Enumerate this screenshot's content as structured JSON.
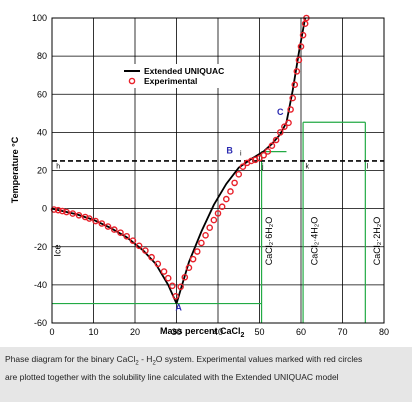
{
  "chart_data": {
    "type": "scatter",
    "xlabel": "Mass percent CaCl",
    "xlabel_sub": "2",
    "ylabel": "Temperature °C",
    "xlim": [
      0,
      80
    ],
    "ylim": [
      -60,
      100
    ],
    "xticks": [
      0,
      10,
      20,
      30,
      40,
      50,
      60,
      70,
      80
    ],
    "yticks": [
      -60,
      -40,
      -20,
      0,
      20,
      40,
      60,
      80,
      100
    ],
    "grid": true,
    "legend_position": "upper-left",
    "legend": [
      {
        "label": "Extended UNIQUAC",
        "style": "line",
        "color": "#000000"
      },
      {
        "label": "Experimental",
        "style": "marker",
        "color": "#e8202a"
      }
    ],
    "reference_line": {
      "y": 25,
      "style": "dashed",
      "color": "#000000"
    },
    "phase_lines_color": "#22aa44",
    "phase_lines": [
      {
        "x1": 0,
        "y1": -49.8,
        "x2": 50.5,
        "y2": -49.8
      },
      {
        "x1": 50.5,
        "y1": -60,
        "x2": 50.5,
        "y2": 29.9
      },
      {
        "x1": 50.5,
        "y1": 29.9,
        "x2": 56.5,
        "y2": 29.9
      },
      {
        "x1": 60.5,
        "y1": -60,
        "x2": 60.5,
        "y2": 45.3
      },
      {
        "x1": 60.5,
        "y1": 45.3,
        "x2": 75.5,
        "y2": 45.3
      },
      {
        "x1": 75.5,
        "y1": -60,
        "x2": 75.5,
        "y2": 45.3
      }
    ],
    "series": [
      {
        "name": "Extended UNIQUAC",
        "type": "line",
        "color": "#000000",
        "segments": [
          {
            "x": [
              0,
              3,
              6,
              10,
              14,
              18,
              22,
              25,
              28,
              30
            ],
            "y": [
              0,
              -1.5,
              -3,
              -5.9,
              -10,
              -15,
              -22,
              -29,
              -40,
              -49.8
            ]
          },
          {
            "x": [
              30,
              33,
              36,
              39,
              42,
              45,
              48,
              51
            ],
            "y": [
              -49.8,
              -28,
              -12,
              2,
              13,
              21.5,
              26,
              30
            ]
          },
          {
            "x": [
              51,
              53,
              55,
              56.5
            ],
            "y": [
              30,
              34,
              39,
              45.3
            ]
          },
          {
            "x": [
              56.5,
              58,
              59.5,
              61
            ],
            "y": [
              45.3,
              62,
              82,
              100
            ]
          }
        ]
      },
      {
        "name": "Experimental",
        "type": "scatter",
        "color": "#e8202a",
        "x": [
          0.5,
          1.5,
          2.5,
          3.5,
          5,
          6.5,
          8,
          9,
          10.5,
          12,
          13.5,
          15,
          16.5,
          18,
          19.5,
          21,
          22.5,
          24,
          25.5,
          27,
          28,
          29,
          29.8,
          31,
          32,
          33,
          34,
          35,
          36,
          37,
          38,
          39,
          40,
          41,
          42,
          43,
          44,
          45,
          46,
          47,
          48,
          49,
          50,
          51,
          52,
          53,
          54,
          55,
          56,
          57,
          57.5,
          58,
          58.5,
          59,
          59.5,
          60,
          60.5,
          61,
          61.3
        ],
        "y": [
          -0.5,
          -0.8,
          -1.3,
          -1.8,
          -2.6,
          -3.5,
          -4.4,
          -5.2,
          -6.5,
          -7.8,
          -9.4,
          -11,
          -12.6,
          -14.5,
          -16.8,
          -19.5,
          -22,
          -25.5,
          -29,
          -33,
          -36.5,
          -40.5,
          -46,
          -41,
          -36,
          -31,
          -26.5,
          -22.5,
          -18,
          -14,
          -10,
          -6,
          -2.5,
          1,
          5,
          9,
          13.5,
          18,
          22,
          24,
          25,
          25.6,
          26.5,
          28,
          30,
          33,
          36,
          40,
          43,
          45,
          52,
          58,
          65,
          72,
          78,
          85,
          91,
          97,
          100
        ]
      }
    ],
    "annotations": [
      {
        "text": "A",
        "x": 30.5,
        "y": -53.5,
        "style": "point"
      },
      {
        "text": "B",
        "x": 42.8,
        "y": 29,
        "style": "point"
      },
      {
        "text": "C",
        "x": 55,
        "y": 49,
        "style": "point"
      },
      {
        "text": "h",
        "x": 1.5,
        "y": 21,
        "style": "small"
      },
      {
        "text": "i",
        "x": 45.5,
        "y": 28,
        "style": "small"
      },
      {
        "text": "j",
        "x": 50.8,
        "y": 21,
        "style": "small"
      },
      {
        "text": "k",
        "x": 61.5,
        "y": 21,
        "style": "small"
      },
      {
        "text": "l",
        "x": 76,
        "y": 21,
        "style": "small"
      }
    ],
    "vertical_labels": [
      {
        "text": "Ice",
        "x": 2,
        "y": -22
      },
      {
        "text": "CaCl₂·6H₂O",
        "x": 53,
        "y": -17
      },
      {
        "text": "CaCl₂·4H₂O",
        "x": 64,
        "y": -17
      },
      {
        "text": "CaCl₂·2H₂O",
        "x": 79,
        "y": -17
      }
    ]
  },
  "caption": {
    "line1_before": "Phase diagram for the binary CaCl",
    "line1_sub1": "2",
    "line1_mid": " - H",
    "line1_sub2": "2",
    "line1_after": "O system. Experimental values marked with red circles",
    "line2": "are plotted together with the solubility line calculated with the Extended UNIQUAC model"
  }
}
